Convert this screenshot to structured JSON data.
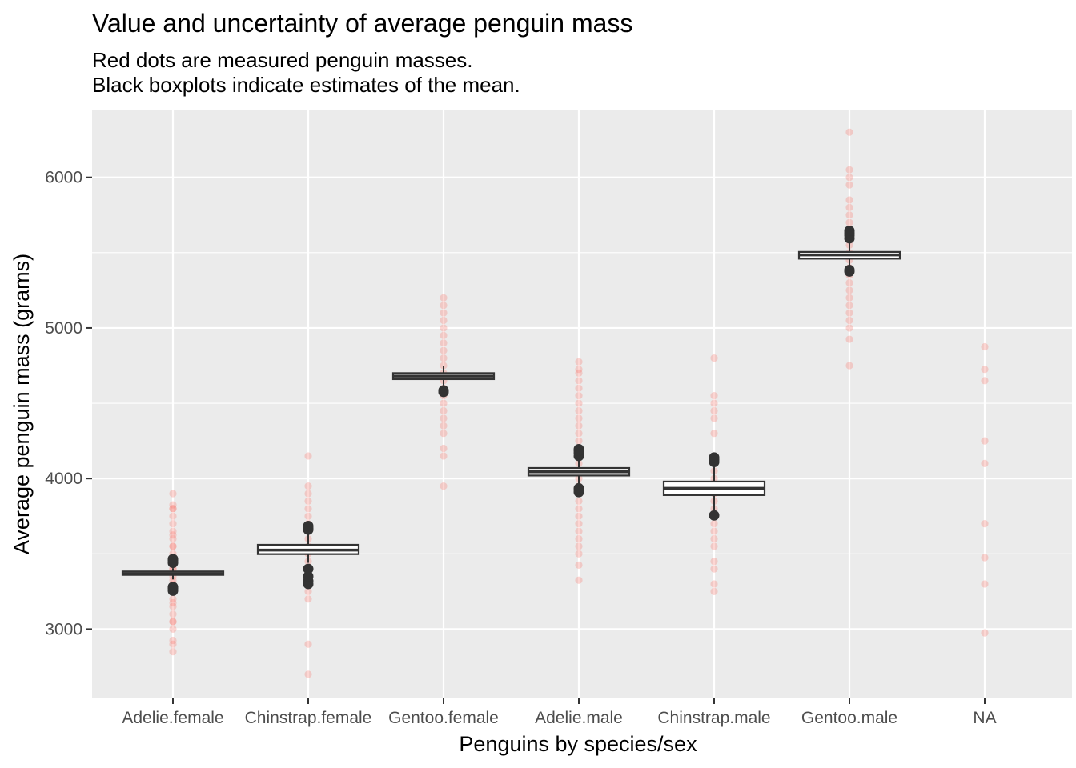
{
  "chart_data": {
    "type": "boxplot-with-points",
    "title": "Value and uncertainty of average penguin mass",
    "subtitle_lines": [
      "Red dots are measured penguin masses.",
      "Black boxplots indicate estimates of the mean."
    ],
    "xlabel": "Penguins by species/sex",
    "ylabel": "Average penguin mass (grams)",
    "ylim": [
      2540,
      6450
    ],
    "yticks": [
      3000,
      4000,
      5000,
      6000
    ],
    "categories": [
      "Adelie.female",
      "Chinstrap.female",
      "Gentoo.female",
      "Adelie.male",
      "Chinstrap.male",
      "Gentoo.male",
      "NA"
    ],
    "grid": true,
    "colors": {
      "panel_background": "#ebebeb",
      "grid": "#ffffff",
      "points": "#f8766d",
      "boxplot": "#333333"
    },
    "measured_points": [
      {
        "category": "Adelie.female",
        "values": [
          2850,
          2900,
          2925,
          3000,
          3050,
          3050,
          3100,
          3150,
          3175,
          3200,
          3250,
          3300,
          3325,
          3350,
          3400,
          3400,
          3450,
          3450,
          3500,
          3550,
          3550,
          3600,
          3625,
          3650,
          3700,
          3750,
          3800,
          3800,
          3825,
          3900
        ]
      },
      {
        "category": "Chinstrap.female",
        "values": [
          2700,
          2900,
          3200,
          3250,
          3300,
          3350,
          3400,
          3450,
          3500,
          3525,
          3550,
          3600,
          3650,
          3675,
          3700,
          3750,
          3800,
          3850,
          3900,
          3950,
          4150
        ]
      },
      {
        "category": "Gentoo.female",
        "values": [
          3950,
          4150,
          4200,
          4300,
          4350,
          4400,
          4450,
          4500,
          4550,
          4600,
          4650,
          4700,
          4750,
          4800,
          4850,
          4900,
          4950,
          5000,
          5050,
          5100,
          5150,
          5200
        ]
      },
      {
        "category": "Adelie.male",
        "values": [
          3325,
          3425,
          3500,
          3550,
          3600,
          3650,
          3700,
          3750,
          3800,
          3850,
          3900,
          3950,
          4000,
          4050,
          4100,
          4150,
          4200,
          4250,
          4300,
          4350,
          4400,
          4450,
          4500,
          4550,
          4600,
          4650,
          4700,
          4725,
          4775
        ]
      },
      {
        "category": "Chinstrap.male",
        "values": [
          3250,
          3300,
          3400,
          3450,
          3550,
          3600,
          3650,
          3700,
          3750,
          3800,
          3850,
          3900,
          3950,
          4000,
          4050,
          4100,
          4150,
          4300,
          4400,
          4450,
          4500,
          4550,
          4800
        ]
      },
      {
        "category": "Gentoo.male",
        "values": [
          4750,
          4925,
          5000,
          5050,
          5100,
          5150,
          5200,
          5250,
          5300,
          5350,
          5400,
          5450,
          5500,
          5550,
          5600,
          5650,
          5700,
          5750,
          5800,
          5850,
          5950,
          6000,
          6050,
          6300
        ]
      },
      {
        "category": "NA",
        "values": [
          2975,
          3300,
          3475,
          3700,
          4100,
          4250,
          4650,
          4725,
          4875
        ]
      }
    ],
    "mean_estimates": [
      {
        "category": "Adelie.female",
        "q1": 3360,
        "median": 3368,
        "q3": 3383,
        "whisker_low": 3330,
        "whisker_high": 3405,
        "outliers": [
          3255,
          3270,
          3280,
          3440,
          3455,
          3465
        ]
      },
      {
        "category": "Chinstrap.female",
        "q1": 3498,
        "median": 3525,
        "q3": 3560,
        "whisker_low": 3440,
        "whisker_high": 3630,
        "outliers": [
          3300,
          3320,
          3350,
          3400,
          3660,
          3670,
          3685
        ]
      },
      {
        "category": "Gentoo.female",
        "q1": 4660,
        "median": 4680,
        "q3": 4700,
        "whisker_low": 4620,
        "whisker_high": 4745,
        "outliers": [
          4575,
          4585
        ]
      },
      {
        "category": "Adelie.male",
        "q1": 4020,
        "median": 4045,
        "q3": 4070,
        "whisker_low": 3960,
        "whisker_high": 4130,
        "outliers": [
          3910,
          3925,
          3935,
          4150,
          4170,
          4185,
          4195
        ]
      },
      {
        "category": "Chinstrap.male",
        "q1": 3890,
        "median": 3935,
        "q3": 3980,
        "whisker_low": 3790,
        "whisker_high": 4090,
        "outliers": [
          3755,
          4110,
          4125,
          4140
        ]
      },
      {
        "category": "Gentoo.male",
        "q1": 5460,
        "median": 5485,
        "q3": 5505,
        "whisker_low": 5410,
        "whisker_high": 5565,
        "outliers": [
          5375,
          5385,
          5595,
          5615,
          5630,
          5645
        ]
      }
    ]
  }
}
